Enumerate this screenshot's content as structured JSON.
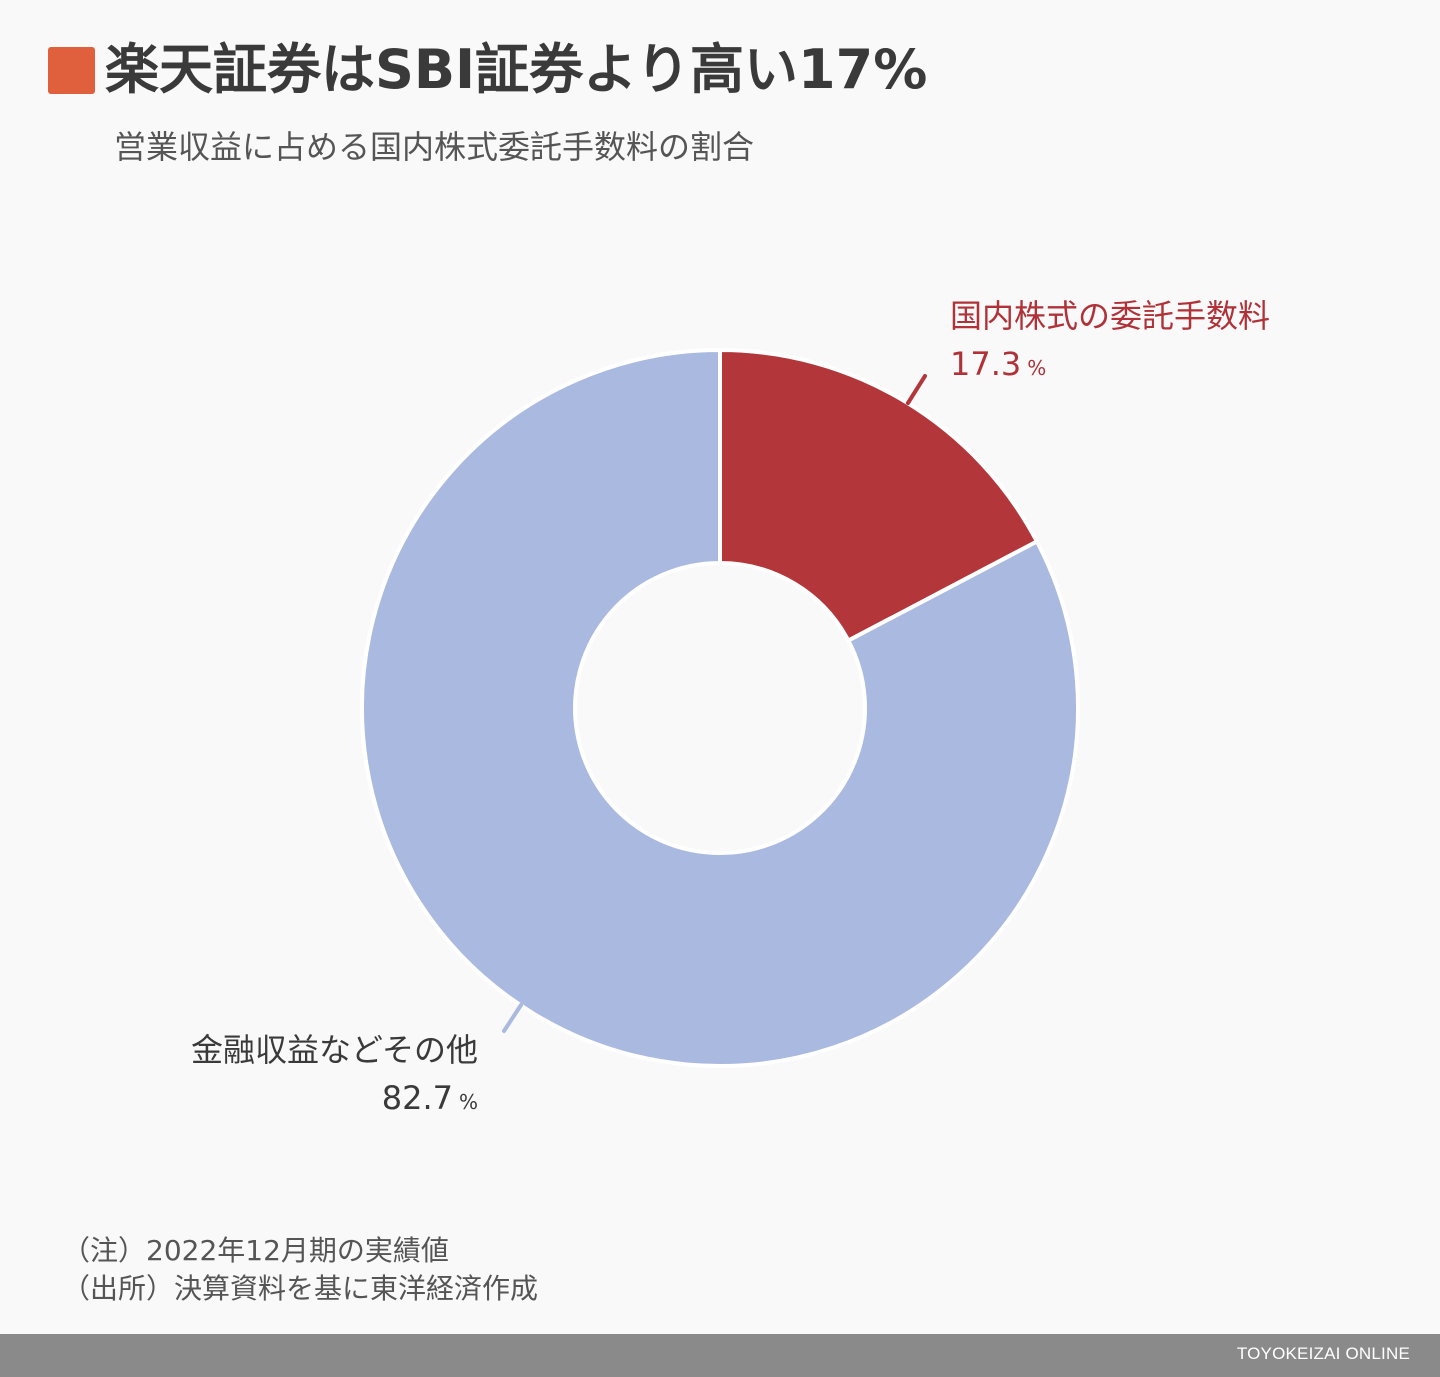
{
  "header": {
    "title": "楽天証券はSBI証券より高い17%",
    "marker_color": "#e0603d",
    "subtitle": "営業収益に占める国内株式委託手数料の割合"
  },
  "chart_data": {
    "type": "pie",
    "variant": "donut",
    "title": "楽天証券はSBI証券より高い17%",
    "subtitle": "営業収益に占める国内株式委託手数料の割合",
    "categories": [
      "国内株式の委託手数料",
      "金融収益などその他"
    ],
    "values": [
      17.3,
      82.7
    ],
    "unit": "%",
    "colors": [
      "#b3363a",
      "#a9b9e0"
    ],
    "start_angle": "12 o'clock, clockwise",
    "legend": "none (direct labels with leader lines)"
  },
  "labels": {
    "red": {
      "name": "国内株式の委託手数料",
      "value": "17.3",
      "unit": "%"
    },
    "blue": {
      "name": "金融収益などその他",
      "value": "82.7",
      "unit": "%"
    }
  },
  "notes": {
    "note": "（注）2022年12月期の実績値",
    "source": "（出所）決算資料を基に東洋経済作成"
  },
  "footer": {
    "brand": "TOYOKEIZAI ONLINE"
  }
}
